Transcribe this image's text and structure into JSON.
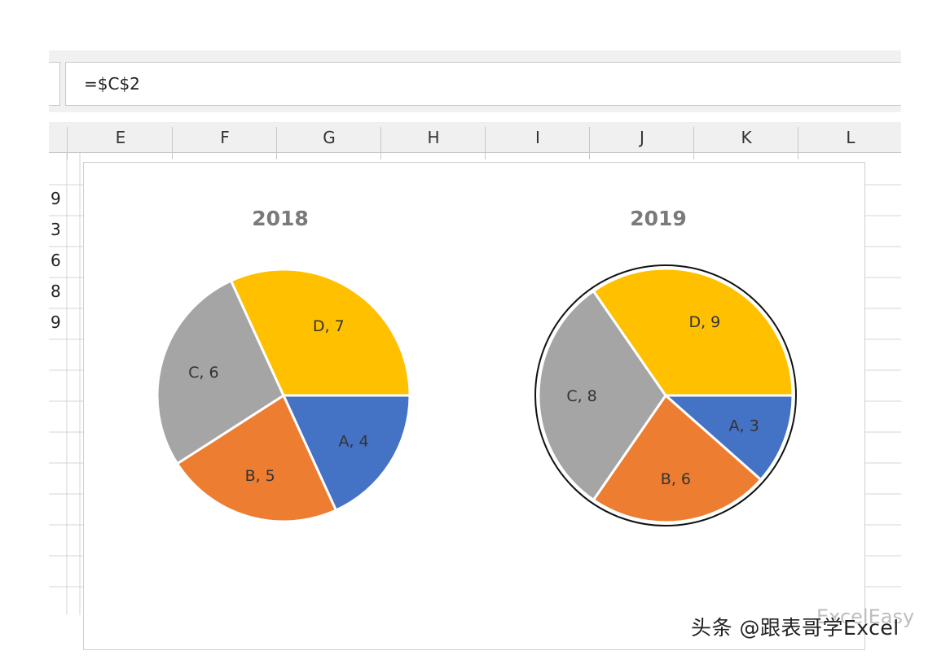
{
  "formula_bar": {
    "value": "=$C$2"
  },
  "columns": [
    "E",
    "F",
    "G",
    "H",
    "I",
    "J",
    "K",
    "L"
  ],
  "row_values": [
    "9",
    "3",
    "6",
    "8",
    "9"
  ],
  "chart_data": [
    {
      "type": "pie",
      "title": "2018",
      "categories": [
        "A",
        "B",
        "C",
        "D"
      ],
      "values": [
        4,
        5,
        6,
        7
      ],
      "labels": [
        "A, 4",
        "B, 5",
        "C, 6",
        "D, 7"
      ],
      "colors": [
        "#4472c4",
        "#ed7d31",
        "#a5a5a5",
        "#ffc000"
      ],
      "legend": "none"
    },
    {
      "type": "pie",
      "title": "2019",
      "categories": [
        "A",
        "B",
        "C",
        "D"
      ],
      "values": [
        3,
        6,
        8,
        9
      ],
      "labels": [
        "A, 3",
        "B, 6",
        "C, 8",
        "D, 9"
      ],
      "colors": [
        "#4472c4",
        "#ed7d31",
        "#a5a5a5",
        "#ffc000"
      ],
      "legend": "none",
      "selected": true
    }
  ],
  "watermark": {
    "text": "头条 @跟表哥学Excel",
    "ghost": "ExcelEasy"
  }
}
